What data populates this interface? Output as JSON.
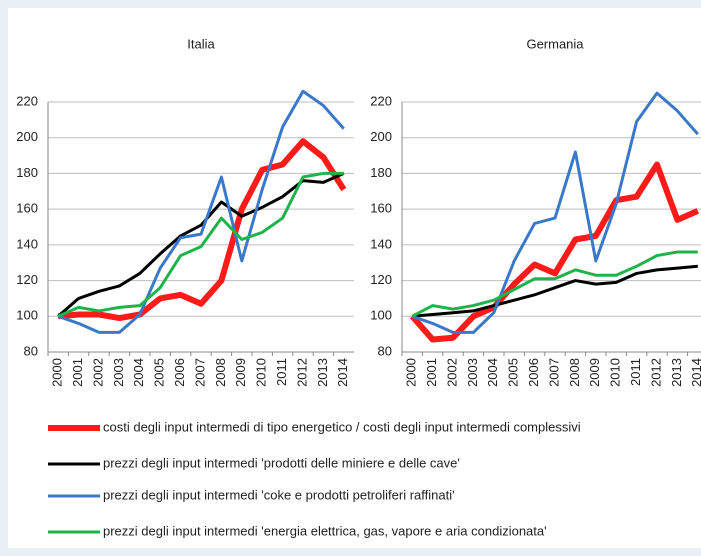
{
  "chart_data": [
    {
      "type": "line",
      "title": "Italia",
      "categories": [
        "2000",
        "2001",
        "2002",
        "2003",
        "2004",
        "2005",
        "2006",
        "2007",
        "2008",
        "2009",
        "2010",
        "2011",
        "2012",
        "2013",
        "2014"
      ],
      "ylim": [
        80,
        220
      ],
      "yticks": [
        80,
        100,
        120,
        140,
        160,
        180,
        200,
        220
      ],
      "grid": true,
      "series": [
        {
          "name": "costi degli input intermedi di tipo energetico / costi degli input intermedi complessivi",
          "color": "#ff1a1a",
          "values": [
            100,
            101,
            101,
            99,
            101,
            110,
            112,
            107,
            120,
            160,
            182,
            185,
            198,
            189,
            171
          ]
        },
        {
          "name": "prezzi degli input intermedi 'prodotti delle miniere e delle cave'",
          "color": "#000000",
          "values": [
            100,
            110,
            114,
            117,
            124,
            135,
            145,
            151,
            164,
            156,
            161,
            167,
            176,
            175,
            180
          ]
        },
        {
          "name": "prezzi degli input intermedi 'coke e prodotti petroliferi raffinati'",
          "color": "#3a78c9",
          "values": [
            100,
            96,
            91,
            91,
            101,
            127,
            144,
            146,
            178,
            131,
            171,
            206,
            226,
            218,
            205
          ]
        },
        {
          "name": "prezzi degli input intermedi 'energia elettrica, gas, vapore e aria condizionata'",
          "color": "#1fb34a",
          "values": [
            100,
            105,
            103,
            105,
            106,
            116,
            134,
            139,
            155,
            143,
            147,
            155,
            178,
            180,
            180
          ]
        }
      ]
    },
    {
      "type": "line",
      "title": "Germania",
      "categories": [
        "2000",
        "2001",
        "2002",
        "2003",
        "2004",
        "2005",
        "2006",
        "2007",
        "2008",
        "2009",
        "2010",
        "2011",
        "2012",
        "2013",
        "2014"
      ],
      "ylim": [
        80,
        220
      ],
      "yticks": [
        80,
        100,
        120,
        140,
        160,
        180,
        200,
        220
      ],
      "grid": true,
      "series": [
        {
          "color": "#ff1a1a",
          "values": [
            100,
            87,
            88,
            100,
            105,
            118,
            129,
            124,
            143,
            145,
            165,
            167,
            185,
            154,
            159
          ]
        },
        {
          "color": "#000000",
          "values": [
            100,
            101,
            102,
            103,
            106,
            109,
            112,
            116,
            120,
            118,
            119,
            124,
            126,
            127,
            128
          ]
        },
        {
          "color": "#3a78c9",
          "values": [
            100,
            96,
            91,
            91,
            102,
            131,
            152,
            155,
            192,
            131,
            163,
            209,
            225,
            215,
            202
          ]
        },
        {
          "color": "#1fb34a",
          "values": [
            100,
            106,
            104,
            106,
            109,
            115,
            121,
            121,
            126,
            123,
            123,
            128,
            134,
            136,
            136
          ]
        }
      ]
    }
  ]
}
